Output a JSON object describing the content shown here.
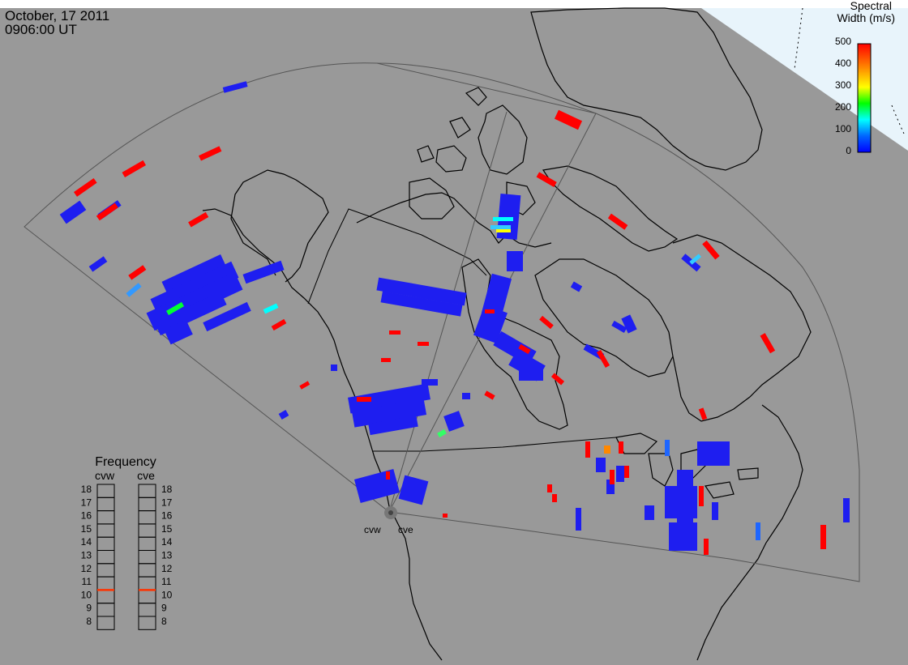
{
  "header": {
    "date": "October, 17 2011",
    "time": "0906:00 UT"
  },
  "colorbar": {
    "title_line1": "Spectral",
    "title_line2": "Width (m/s)",
    "ticks": [
      "500",
      "400",
      "300",
      "200",
      "100",
      "0"
    ],
    "colors": [
      "#0000ff",
      "#0066ff",
      "#00ffff",
      "#00ff00",
      "#ffff00",
      "#ff8800",
      "#ff0000"
    ]
  },
  "radars": {
    "west_label": "cvw",
    "east_label": "cve"
  },
  "frequency_panel": {
    "title": "Frequency",
    "col_west": "cvw",
    "col_east": "cve",
    "scale": [
      "18",
      "17",
      "16",
      "15",
      "14",
      "13",
      "12",
      "11",
      "10",
      "9",
      "8"
    ],
    "cvw_frequency": 10.5,
    "cve_frequency": 10.5,
    "marker_color": "#ff3300"
  },
  "colors": {
    "background": "#999999",
    "land_outline": "#000000",
    "fov_outline": "#444444",
    "sea_ice_area": "#e8f4fb"
  }
}
